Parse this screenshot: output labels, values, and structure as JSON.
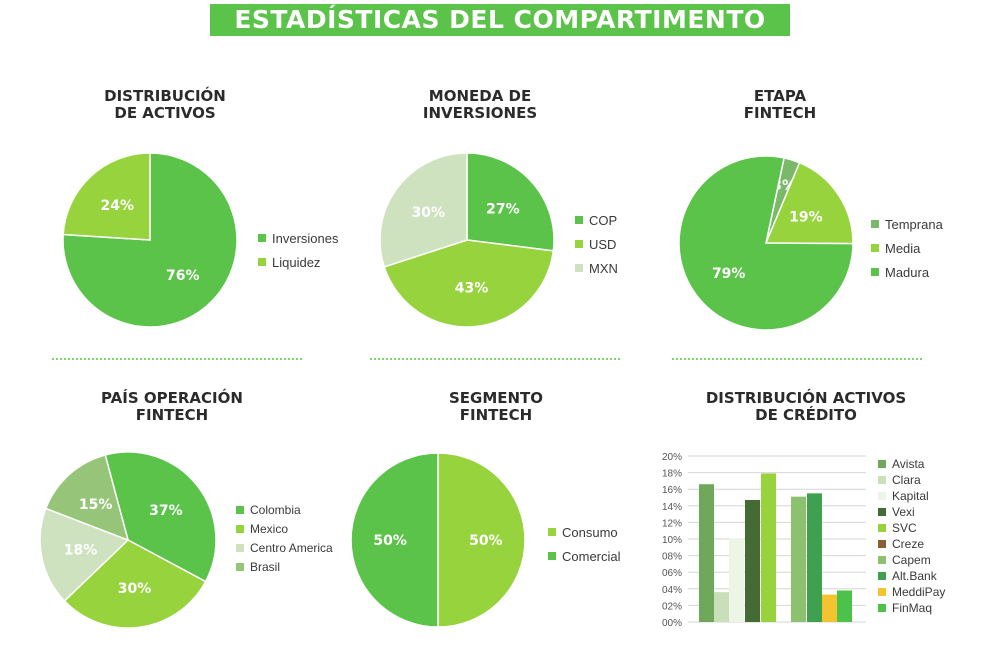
{
  "page_title": "ESTADÍSTICAS DEL COMPARTIMENTO",
  "chart_data": [
    {
      "type": "pie",
      "title": [
        "DISTRIBUCIÓN",
        "DE ACTIVOS"
      ],
      "labels": [
        "Inversiones",
        "Liquidez"
      ],
      "values": [
        76,
        24
      ],
      "value_labels": [
        "76%",
        "24%"
      ],
      "colors": [
        "#5cc34a",
        "#97d33c"
      ],
      "legend_position": "right"
    },
    {
      "type": "pie",
      "title": [
        "MONEDA DE",
        "INVERSIONES"
      ],
      "labels": [
        "COP",
        "USD",
        "MXN"
      ],
      "values": [
        27,
        43,
        30
      ],
      "value_labels": [
        "27%",
        "43%",
        "30%"
      ],
      "colors": [
        "#5cc34a",
        "#97d33c",
        "#cfe2bf"
      ],
      "legend_position": "right"
    },
    {
      "type": "pie",
      "title": [
        "ETAPA",
        "FINTECH"
      ],
      "labels": [
        "Temprana",
        "Media",
        "Madura"
      ],
      "values": [
        3,
        19,
        79
      ],
      "value_labels": [
        "3%",
        "19%",
        "79%"
      ],
      "colors": [
        "#7ab86a",
        "#97d33c",
        "#5cc34a"
      ],
      "legend_position": "right"
    },
    {
      "type": "pie",
      "title": [
        "PAÍS OPERACIÓN",
        "FINTECH"
      ],
      "labels": [
        "Colombia",
        "Mexico",
        "Centro America",
        "Brasil"
      ],
      "values": [
        37,
        30,
        18,
        15
      ],
      "value_labels": [
        "37%",
        "30%",
        "18%",
        "15%"
      ],
      "colors": [
        "#5cc34a",
        "#97d33c",
        "#cfe2bf",
        "#96c579"
      ],
      "legend_position": "right"
    },
    {
      "type": "pie",
      "title": [
        "SEGMENTO",
        "FINTECH"
      ],
      "labels": [
        "Consumo",
        "Comercial"
      ],
      "values": [
        50,
        50
      ],
      "value_labels": [
        "50%",
        "50%"
      ],
      "colors": [
        "#97d33c",
        "#5cc34a"
      ],
      "legend_position": "right"
    },
    {
      "type": "bar",
      "title": [
        "DISTRIBUCIÓN ACTIVOS",
        "DE CRÉDITO"
      ],
      "ylim": [
        0,
        20
      ],
      "y_ticks": [
        "00%",
        "02%",
        "04%",
        "06%",
        "08%",
        "10%",
        "12%",
        "14%",
        "16%",
        "18%",
        "20%"
      ],
      "series": [
        {
          "name": "Avista",
          "value": 16.6,
          "color": "#6fa85a"
        },
        {
          "name": "Clara",
          "value": 3.6,
          "color": "#c8dfba"
        },
        {
          "name": "Kapital",
          "value": 10.1,
          "color": "#edf5e6"
        },
        {
          "name": "Vexi",
          "value": 14.7,
          "color": "#446b34"
        },
        {
          "name": "SVC",
          "value": 17.9,
          "color": "#97d33c"
        },
        {
          "name": "Creze",
          "value": 0,
          "color": "#8b5e34"
        },
        {
          "name": "Capem",
          "value": 15.1,
          "color": "#8cc26f"
        },
        {
          "name": "Alt.Bank",
          "value": 15.5,
          "color": "#3fa04f"
        },
        {
          "name": "MeddiPay",
          "value": 3.3,
          "color": "#f4c430"
        },
        {
          "name": "FinMaq",
          "value": 3.8,
          "color": "#4cc24a"
        }
      ],
      "legend_position": "right"
    }
  ]
}
